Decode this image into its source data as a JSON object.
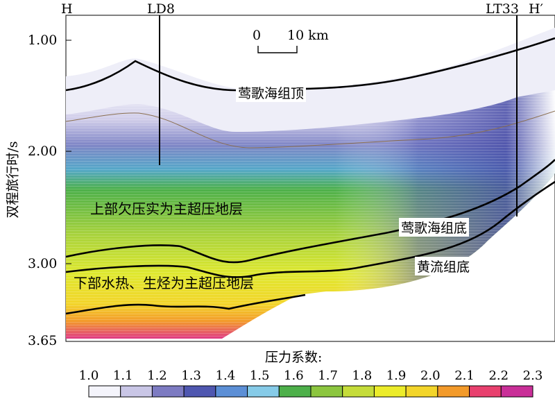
{
  "well_labels": {
    "left_end": "H",
    "right_end": "H′",
    "well_1": "LD8",
    "well_2": "LT33"
  },
  "scale_bar": {
    "start": "0",
    "end": "10 km"
  },
  "y_axis": {
    "title": "双程旅行时/s",
    "ticks": [
      "1.00",
      "2.00",
      "3.00",
      "3.65"
    ]
  },
  "horizon_labels": {
    "top": "莺歌海组顶",
    "base": "莺歌海组底",
    "huangliu": "黄流组底"
  },
  "zone_labels": {
    "upper": "上部欠压实为主超压地层",
    "lower": "下部水热、生烃为主超压地层"
  },
  "colorbar": {
    "title": "压力系数:",
    "ticks": [
      "1.0",
      "1.1",
      "1.2",
      "1.3",
      "1.4",
      "1.5",
      "1.6",
      "1.7",
      "1.8",
      "1.9",
      "2.0",
      "2.1",
      "2.2",
      "2.3"
    ],
    "colors": [
      "#f4f4fb",
      "#c9c6e6",
      "#7d7bc2",
      "#4f57b0",
      "#5c8fd6",
      "#86cbe8",
      "#4db04a",
      "#8cc63f",
      "#c5dc3a",
      "#ecec2a",
      "#f3d52a",
      "#f39a2a",
      "#e8406e",
      "#c92f98"
    ]
  }
}
